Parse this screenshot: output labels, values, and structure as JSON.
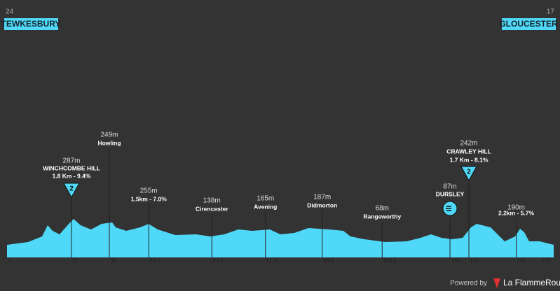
{
  "header": {
    "start_km": "24",
    "start": "TEWKESBURY",
    "end_km": "17",
    "end": "GLOUCESTER"
  },
  "waypoints": [
    {
      "km": 20,
      "alt": "287m",
      "name": "WINCHCOMBE HILL",
      "sub": "1.8 Km - 9.4%",
      "icon": "2"
    },
    {
      "km": 32,
      "alt": "249m",
      "name": "Howling"
    },
    {
      "km": 44.5,
      "alt": "255m",
      "sub": "1.5km - 7.0%"
    },
    {
      "km": 64.5,
      "alt": "138m",
      "name": "Cirencester"
    },
    {
      "km": 81.5,
      "alt": "165m",
      "name": "Avening"
    },
    {
      "km": 99.5,
      "alt": "187m",
      "name": "Didmorton"
    },
    {
      "km": 118.5,
      "alt": "68m",
      "name": "Rangeworthy"
    },
    {
      "km": 140,
      "alt": "87m",
      "name": "DURSLEY",
      "sprint": true
    },
    {
      "km": 146,
      "alt": "242m",
      "name": "CRAWLEY HILL",
      "sub": "1.7 Km - 8.1%",
      "icon": "2"
    },
    {
      "km": 161,
      "alt": "190m",
      "sub": "2.2km - 5.7%"
    }
  ],
  "axis": {
    "start": 0,
    "end": 171
  },
  "footer": {
    "powered": "Powered by",
    "brand": "La FlammeRouge"
  }
}
